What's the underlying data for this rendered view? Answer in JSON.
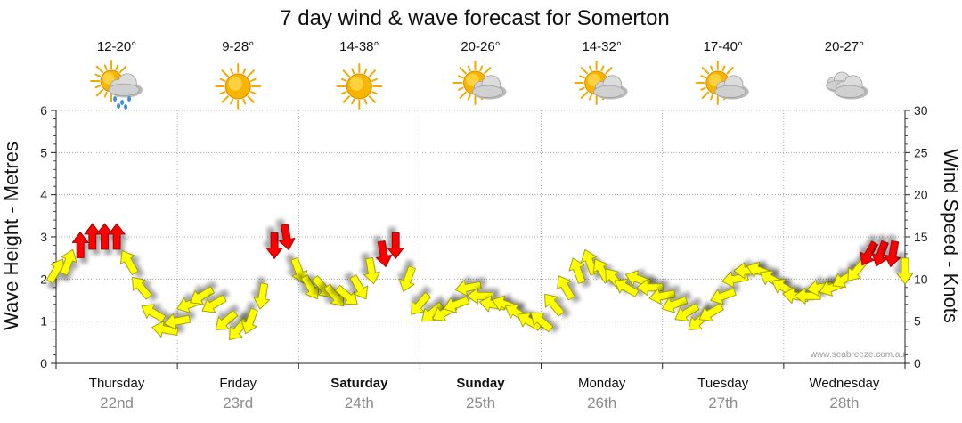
{
  "title": "7 day wind & wave forecast for Somerton",
  "credit": "www.seabreeze.com.au",
  "colors": {
    "calm": "#ffff00",
    "strong": "#ff0000",
    "calm_stroke": "#8a8a00",
    "strong_stroke": "#800000",
    "grid": "#9a9a9a",
    "axis": "#222222"
  },
  "days": [
    {
      "name": "Thursday",
      "date": "22nd",
      "temp": "12-20°",
      "icon": "sun-cloud-rain-icon",
      "bold": false
    },
    {
      "name": "Friday",
      "date": "23rd",
      "temp": "9-28°",
      "icon": "sun-icon",
      "bold": false
    },
    {
      "name": "Saturday",
      "date": "24th",
      "temp": "14-38°",
      "icon": "sun-icon",
      "bold": true
    },
    {
      "name": "Sunday",
      "date": "25th",
      "temp": "20-26°",
      "icon": "sun-cloud-icon",
      "bold": true
    },
    {
      "name": "Monday",
      "date": "26th",
      "temp": "14-32°",
      "icon": "sun-cloud-icon",
      "bold": false
    },
    {
      "name": "Tuesday",
      "date": "27th",
      "temp": "17-40°",
      "icon": "sun-cloud-icon",
      "bold": false
    },
    {
      "name": "Wednesday",
      "date": "28th",
      "temp": "20-27°",
      "icon": "cloud-icon",
      "bold": false
    }
  ],
  "chart_data": {
    "type": "line",
    "title": "7 day wind & wave forecast for Somerton",
    "y_left_label": "Wave Height - Metres",
    "y_right_label": "Wind Speed - Knots",
    "y_left_lim": [
      0,
      6
    ],
    "y_left_ticks": [
      "0",
      "1",
      "2",
      "3",
      "4",
      "5",
      "6"
    ],
    "y_right_lim": [
      0,
      30
    ],
    "y_right_ticks": [
      "0",
      "5",
      "10",
      "15",
      "20",
      "25",
      "30"
    ],
    "x_categories": [
      "Thursday 22nd",
      "Friday 23rd",
      "Saturday 24th",
      "Sunday 25th",
      "Monday 26th",
      "Tuesday 27th",
      "Wednesday 28th"
    ],
    "grid": true,
    "series": [
      {
        "name": "Wind speed & direction",
        "unit": "knots",
        "x_day": [
          0.0,
          0.1,
          0.2,
          0.3,
          0.4,
          0.5,
          0.6,
          0.7,
          0.8,
          0.9,
          1.0,
          1.1,
          1.2,
          1.3,
          1.4,
          1.5,
          1.6,
          1.7,
          1.8,
          1.9,
          2.0,
          2.1,
          2.2,
          2.3,
          2.4,
          2.5,
          2.6,
          2.7,
          2.8,
          2.9,
          3.0,
          3.1,
          3.2,
          3.3,
          3.4,
          3.5,
          3.6,
          3.7,
          3.8,
          3.9,
          4.0,
          4.1,
          4.2,
          4.3,
          4.4,
          4.5,
          4.6,
          4.7,
          4.8,
          4.9,
          5.0,
          5.1,
          5.2,
          5.3,
          5.4,
          5.5,
          5.6,
          5.7,
          5.8,
          5.9,
          6.0,
          6.1,
          6.2,
          6.3,
          6.4,
          6.5,
          6.6,
          6.7,
          6.8,
          6.9,
          7.0
        ],
        "values": [
          11,
          12,
          14,
          15,
          15,
          15,
          12,
          9,
          6,
          4,
          5,
          7,
          8,
          7,
          5,
          4,
          5,
          8,
          14,
          15,
          11,
          9,
          9,
          8,
          8,
          9,
          11,
          13,
          14,
          10,
          7,
          6,
          6,
          7,
          9,
          8,
          7,
          7,
          6,
          5,
          5,
          7,
          9,
          11,
          12,
          11,
          10,
          9,
          10,
          9,
          8,
          7,
          6,
          5,
          6,
          8,
          10,
          11,
          11,
          10,
          9,
          8,
          8,
          9,
          9,
          10,
          11,
          13,
          13,
          13,
          11
        ],
        "direction_deg": [
          30,
          20,
          0,
          0,
          0,
          0,
          330,
          320,
          300,
          280,
          260,
          250,
          240,
          240,
          230,
          220,
          200,
          190,
          180,
          170,
          160,
          150,
          140,
          140,
          130,
          150,
          170,
          170,
          180,
          200,
          220,
          230,
          240,
          250,
          260,
          270,
          280,
          290,
          300,
          300,
          310,
          320,
          330,
          340,
          340,
          330,
          320,
          300,
          290,
          270,
          260,
          250,
          240,
          230,
          240,
          250,
          260,
          270,
          290,
          300,
          300,
          280,
          270,
          260,
          250,
          240,
          220,
          210,
          200,
          190,
          180
        ],
        "calm_threshold_knots": 12.5
      }
    ]
  }
}
